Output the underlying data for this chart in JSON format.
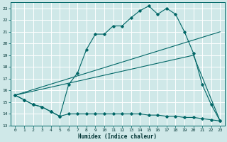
{
  "xlabel": "Humidex (Indice chaleur)",
  "xlim": [
    -0.5,
    23.5
  ],
  "ylim": [
    13,
    23.5
  ],
  "yticks": [
    13,
    14,
    15,
    16,
    17,
    18,
    19,
    20,
    21,
    22,
    23
  ],
  "xticks": [
    0,
    1,
    2,
    3,
    4,
    5,
    6,
    7,
    8,
    9,
    10,
    11,
    12,
    13,
    14,
    15,
    16,
    17,
    18,
    19,
    20,
    21,
    22,
    23
  ],
  "bg_color": "#cfe8e8",
  "line_color": "#006666",
  "grid_color": "#ffffff",
  "line1_x": [
    0,
    1,
    2,
    3,
    4,
    5,
    6,
    7,
    8,
    9,
    10,
    11,
    12,
    13,
    14,
    15,
    16,
    17,
    18,
    19,
    20,
    21,
    22,
    23
  ],
  "line1_y": [
    15.6,
    15.2,
    14.8,
    14.6,
    14.2,
    13.8,
    14.0,
    14.0,
    14.0,
    14.0,
    14.0,
    14.0,
    14.0,
    14.0,
    14.0,
    13.9,
    13.9,
    13.8,
    13.8,
    13.7,
    13.7,
    13.6,
    13.5,
    13.4
  ],
  "line2_x": [
    0,
    1,
    2,
    3,
    4,
    5,
    6,
    7,
    8,
    9,
    10,
    11,
    12,
    13,
    14,
    15,
    16,
    17,
    18,
    19,
    20,
    21,
    22,
    23
  ],
  "line2_y": [
    15.6,
    15.2,
    14.8,
    14.6,
    14.2,
    13.8,
    16.5,
    17.5,
    19.5,
    20.8,
    20.8,
    21.5,
    21.5,
    22.2,
    22.8,
    23.2,
    22.5,
    23.0,
    22.5,
    21.0,
    19.2,
    16.5,
    14.8,
    13.4
  ],
  "line3_x": [
    0,
    23
  ],
  "line3_y": [
    15.6,
    21.0
  ],
  "line4_x": [
    0,
    20,
    23
  ],
  "line4_y": [
    15.6,
    19.0,
    13.4
  ]
}
